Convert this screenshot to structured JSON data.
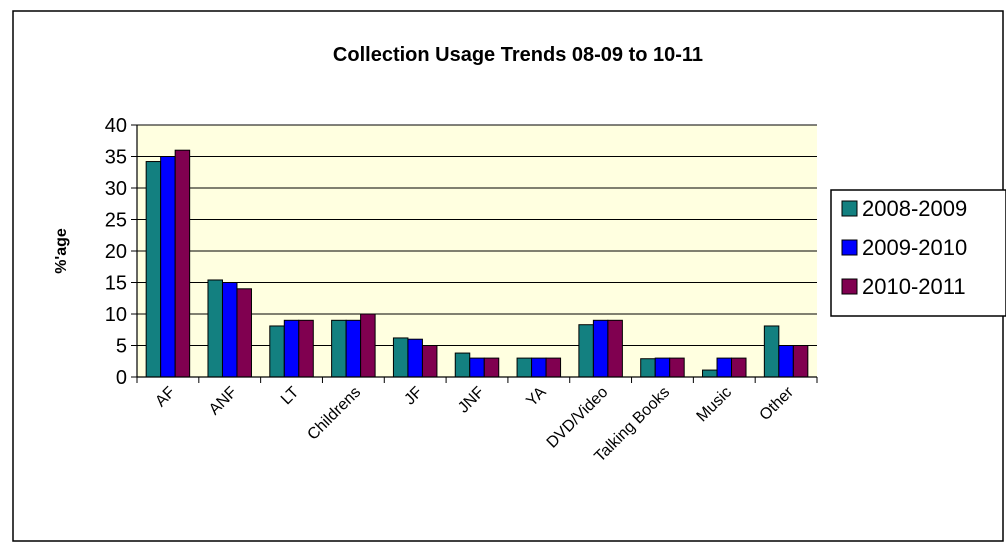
{
  "chart_data": {
    "type": "bar",
    "title": "Collection Usage Trends 08-09 to 10-11",
    "xlabel": "",
    "ylabel": "%'age",
    "ylim": [
      0,
      40
    ],
    "yticks": [
      0,
      5,
      10,
      15,
      20,
      25,
      30,
      35,
      40
    ],
    "grid": true,
    "legend": "right",
    "categories": [
      "AF",
      "ANF",
      "LT",
      "Childrens",
      "JF",
      "JNF",
      "YA",
      "DVD/Video",
      "Talking Books",
      "Music",
      "Other"
    ],
    "series": [
      {
        "name": "2008-2009",
        "color": "#138080",
        "values": [
          34.2,
          15.4,
          8.1,
          9.0,
          6.2,
          3.8,
          3.0,
          8.3,
          2.9,
          1.1,
          8.1
        ]
      },
      {
        "name": "2009-2010",
        "color": "#0000FF",
        "values": [
          35.0,
          15.0,
          9.0,
          9.0,
          6.0,
          3.0,
          3.0,
          9.0,
          3.0,
          3.0,
          5.0
        ]
      },
      {
        "name": "2010-2011",
        "color": "#800050",
        "values": [
          36.0,
          14.0,
          9.0,
          10.0,
          5.0,
          3.0,
          3.0,
          9.0,
          3.0,
          3.0,
          5.0
        ]
      }
    ],
    "plot_background": "#FFFFE0"
  }
}
